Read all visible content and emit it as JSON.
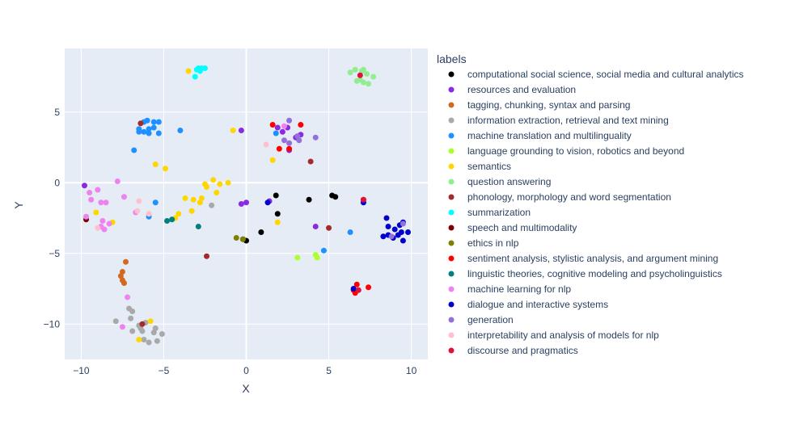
{
  "chart_data": {
    "type": "scatter",
    "title": "",
    "xlabel": "X",
    "ylabel": "Y",
    "xlim": [
      -11,
      11
    ],
    "ylim": [
      -12.5,
      9.5
    ],
    "x_ticks": [
      -10,
      -5,
      0,
      5,
      10
    ],
    "y_ticks": [
      -10,
      -5,
      0,
      5
    ],
    "grid": true,
    "legend_title": "labels",
    "legend_position": "right",
    "series": [
      {
        "name": "computational social science, social media and cultural analytics",
        "color": "#000000",
        "points": [
          [
            1.8,
            -0.9
          ],
          [
            3.8,
            -1.2
          ],
          [
            5.2,
            -0.9
          ],
          [
            5.4,
            -1.0
          ],
          [
            1.9,
            -2.2
          ],
          [
            0.9,
            -3.5
          ],
          [
            -0.2,
            -4.0
          ],
          [
            0.0,
            -4.1
          ]
        ]
      },
      {
        "name": "resources and evaluation",
        "color": "#8a2be2",
        "points": [
          [
            -9.8,
            -0.2
          ],
          [
            -0.3,
            3.7
          ],
          [
            -0.3,
            -1.5
          ],
          [
            0.0,
            -1.4
          ],
          [
            1.4,
            -1.3
          ],
          [
            2.2,
            3.6
          ],
          [
            2.6,
            2.3
          ],
          [
            3.0,
            3.2
          ],
          [
            3.3,
            3.4
          ],
          [
            2.5,
            3.9
          ],
          [
            1.9,
            3.9
          ],
          [
            4.2,
            -3.1
          ]
        ]
      },
      {
        "name": "tagging, chunking, syntax and parsing",
        "color": "#d2691e",
        "points": [
          [
            -7.3,
            -5.6
          ],
          [
            -7.5,
            -6.3
          ],
          [
            -7.6,
            -6.6
          ],
          [
            -7.5,
            -6.9
          ],
          [
            -7.4,
            -7.1
          ]
        ]
      },
      {
        "name": "information extraction, retrieval and text mining",
        "color": "#a9a9a9",
        "points": [
          [
            -2.1,
            -1.6
          ],
          [
            -7.1,
            -8.9
          ],
          [
            -6.9,
            -9.1
          ],
          [
            -7.0,
            -9.6
          ],
          [
            -6.5,
            -10.1
          ],
          [
            -6.3,
            -10.5
          ],
          [
            -6.1,
            -9.9
          ],
          [
            -5.5,
            -10.3
          ],
          [
            -5.1,
            -10.7
          ],
          [
            -5.4,
            -11.2
          ],
          [
            -5.9,
            -11.3
          ],
          [
            -6.2,
            -11.1
          ],
          [
            -6.9,
            -10.5
          ],
          [
            -7.9,
            -9.8
          ],
          [
            -5.6,
            -10.6
          ],
          [
            -6.4,
            -10.3
          ]
        ]
      },
      {
        "name": "machine translation and multilinguality",
        "color": "#1e90ff",
        "points": [
          [
            -6.2,
            4.3
          ],
          [
            -6.0,
            4.4
          ],
          [
            -5.6,
            4.3
          ],
          [
            -5.3,
            4.3
          ],
          [
            -6.5,
            3.8
          ],
          [
            -6.2,
            3.6
          ],
          [
            -5.9,
            3.5
          ],
          [
            -5.6,
            3.9
          ],
          [
            -5.3,
            3.5
          ],
          [
            -6.5,
            3.6
          ],
          [
            -5.9,
            3.8
          ],
          [
            -4.0,
            3.7
          ],
          [
            -6.8,
            2.3
          ],
          [
            -5.5,
            -1.4
          ],
          [
            -5.9,
            -2.4
          ],
          [
            1.8,
            3.5
          ],
          [
            6.3,
            -3.5
          ],
          [
            4.7,
            -4.8
          ]
        ]
      },
      {
        "name": "language grounding to vision, robotics and beyond",
        "color": "#adff2f",
        "points": [
          [
            3.1,
            -5.3
          ],
          [
            4.2,
            -5.1
          ],
          [
            4.3,
            -5.3
          ]
        ]
      },
      {
        "name": "semantics",
        "color": "#ffd700",
        "points": [
          [
            -5.5,
            1.3
          ],
          [
            -4.9,
            1.0
          ],
          [
            -3.7,
            -1.1
          ],
          [
            -3.2,
            -1.2
          ],
          [
            -2.8,
            -1.4
          ],
          [
            -2.4,
            -0.3
          ],
          [
            -2.0,
            0.2
          ],
          [
            -1.6,
            -0.1
          ],
          [
            -1.1,
            0.0
          ],
          [
            -2.5,
            -0.1
          ],
          [
            -1.8,
            -0.7
          ],
          [
            -2.7,
            -1.1
          ],
          [
            -3.3,
            -2.0
          ],
          [
            -4.1,
            -2.2
          ],
          [
            -4.3,
            -2.5
          ],
          [
            -9.1,
            -2.1
          ],
          [
            -8.1,
            -2.8
          ],
          [
            -6.5,
            -11.1
          ],
          [
            -5.8,
            -9.8
          ],
          [
            -0.8,
            3.7
          ],
          [
            1.6,
            1.6
          ],
          [
            1.9,
            -2.8
          ],
          [
            -3.5,
            7.9
          ]
        ]
      },
      {
        "name": "question answering",
        "color": "#90ee90",
        "points": [
          [
            6.3,
            7.8
          ],
          [
            6.6,
            8.0
          ],
          [
            7.1,
            8.0
          ],
          [
            7.3,
            7.7
          ],
          [
            6.9,
            7.3
          ],
          [
            6.7,
            7.2
          ],
          [
            7.1,
            7.1
          ],
          [
            7.4,
            7.0
          ],
          [
            7.7,
            7.5
          ],
          [
            7.0,
            7.9
          ]
        ]
      },
      {
        "name": "phonology, morphology and word segmentation",
        "color": "#a52a2a",
        "points": [
          [
            -6.4,
            4.2
          ],
          [
            -6.3,
            -10.0
          ],
          [
            -2.4,
            -5.2
          ],
          [
            3.9,
            1.5
          ],
          [
            5.0,
            -3.2
          ]
        ]
      },
      {
        "name": "summarization",
        "color": "#00ffff",
        "points": [
          [
            -3.0,
            8.0
          ],
          [
            -2.9,
            8.1
          ],
          [
            -2.7,
            8.1
          ],
          [
            -2.5,
            8.1
          ],
          [
            -2.8,
            7.9
          ],
          [
            -3.1,
            7.5
          ]
        ]
      },
      {
        "name": "speech and multimodality",
        "color": "#800000",
        "points": [
          [
            -9.7,
            -2.6
          ]
        ]
      },
      {
        "name": "ethics in nlp",
        "color": "#808000",
        "points": [
          [
            -0.6,
            -3.9
          ],
          [
            -0.2,
            -4.0
          ]
        ]
      },
      {
        "name": "sentiment analysis, stylistic analysis, and argument mining",
        "color": "#ff0000",
        "points": [
          [
            1.6,
            4.1
          ],
          [
            3.3,
            4.1
          ],
          [
            2.0,
            2.4
          ],
          [
            2.6,
            2.4
          ],
          [
            7.1,
            -1.2
          ],
          [
            6.7,
            -7.2
          ],
          [
            7.4,
            -7.4
          ],
          [
            6.6,
            -7.8
          ],
          [
            6.5,
            -7.6
          ]
        ]
      },
      {
        "name": "linguistic theories, cognitive modeling and psycholinguistics",
        "color": "#008080",
        "points": [
          [
            -4.8,
            -2.7
          ],
          [
            -4.5,
            -2.6
          ],
          [
            -2.9,
            -3.1
          ]
        ]
      },
      {
        "name": "machine learning for nlp",
        "color": "#ee82ee",
        "points": [
          [
            -9.5,
            -0.7
          ],
          [
            -9.0,
            -0.5
          ],
          [
            -9.4,
            -1.2
          ],
          [
            -8.8,
            -1.4
          ],
          [
            -8.5,
            -1.4
          ],
          [
            -7.8,
            0.1
          ],
          [
            -7.4,
            -1.0
          ],
          [
            -9.7,
            -2.4
          ],
          [
            -8.7,
            -2.7
          ],
          [
            -8.3,
            -2.9
          ],
          [
            -8.8,
            -3.1
          ],
          [
            -8.6,
            -3.3
          ],
          [
            -7.2,
            -8.1
          ],
          [
            -7.5,
            -10.2
          ],
          [
            -6.7,
            -2.1
          ],
          [
            2.3,
            4.0
          ]
        ]
      },
      {
        "name": "dialogue and interactive systems",
        "color": "#0000cd",
        "points": [
          [
            8.5,
            -2.5
          ],
          [
            8.6,
            -3.1
          ],
          [
            9.0,
            -3.3
          ],
          [
            9.3,
            -3.0
          ],
          [
            9.5,
            -2.8
          ],
          [
            9.4,
            -3.5
          ],
          [
            9.8,
            -3.5
          ],
          [
            9.2,
            -3.7
          ],
          [
            8.9,
            -3.9
          ],
          [
            8.6,
            -3.7
          ],
          [
            8.3,
            -3.8
          ],
          [
            9.5,
            -4.1
          ],
          [
            7.1,
            -1.4
          ],
          [
            6.5,
            -7.5
          ],
          [
            1.3,
            -1.4
          ]
        ]
      },
      {
        "name": "generation",
        "color": "#9370db",
        "points": [
          [
            2.6,
            4.4
          ],
          [
            3.1,
            3.3
          ],
          [
            3.2,
            3.0
          ],
          [
            4.2,
            3.2
          ],
          [
            2.6,
            2.8
          ],
          [
            2.3,
            3.0
          ],
          [
            8.8,
            -3.8
          ],
          [
            9.5,
            -2.9
          ]
        ]
      },
      {
        "name": "interpretability and analysis of models for nlp",
        "color": "#ffc0cb",
        "points": [
          [
            -6.5,
            -1.3
          ],
          [
            -6.6,
            -2.0
          ],
          [
            -5.9,
            -2.2
          ],
          [
            -9.0,
            -3.2
          ],
          [
            1.2,
            2.7
          ]
        ]
      },
      {
        "name": "discourse and pragmatics",
        "color": "#dc143c",
        "points": [
          [
            6.9,
            7.6
          ],
          [
            6.8,
            -7.6
          ],
          [
            7.1,
            -1.2
          ]
        ]
      }
    ]
  }
}
